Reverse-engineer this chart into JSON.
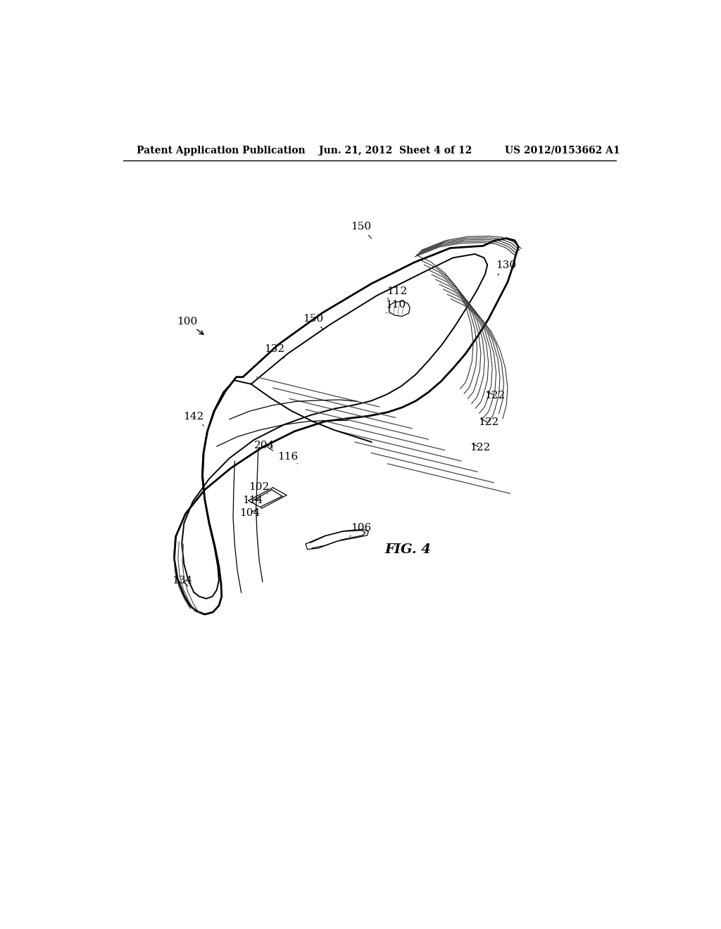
{
  "title_left": "Patent Application Publication",
  "title_center": "Jun. 21, 2012  Sheet 4 of 12",
  "title_right": "US 2012/0153662 A1",
  "fig_label": "FIG. 4",
  "background": "#ffffff",
  "line_color": "#000000"
}
